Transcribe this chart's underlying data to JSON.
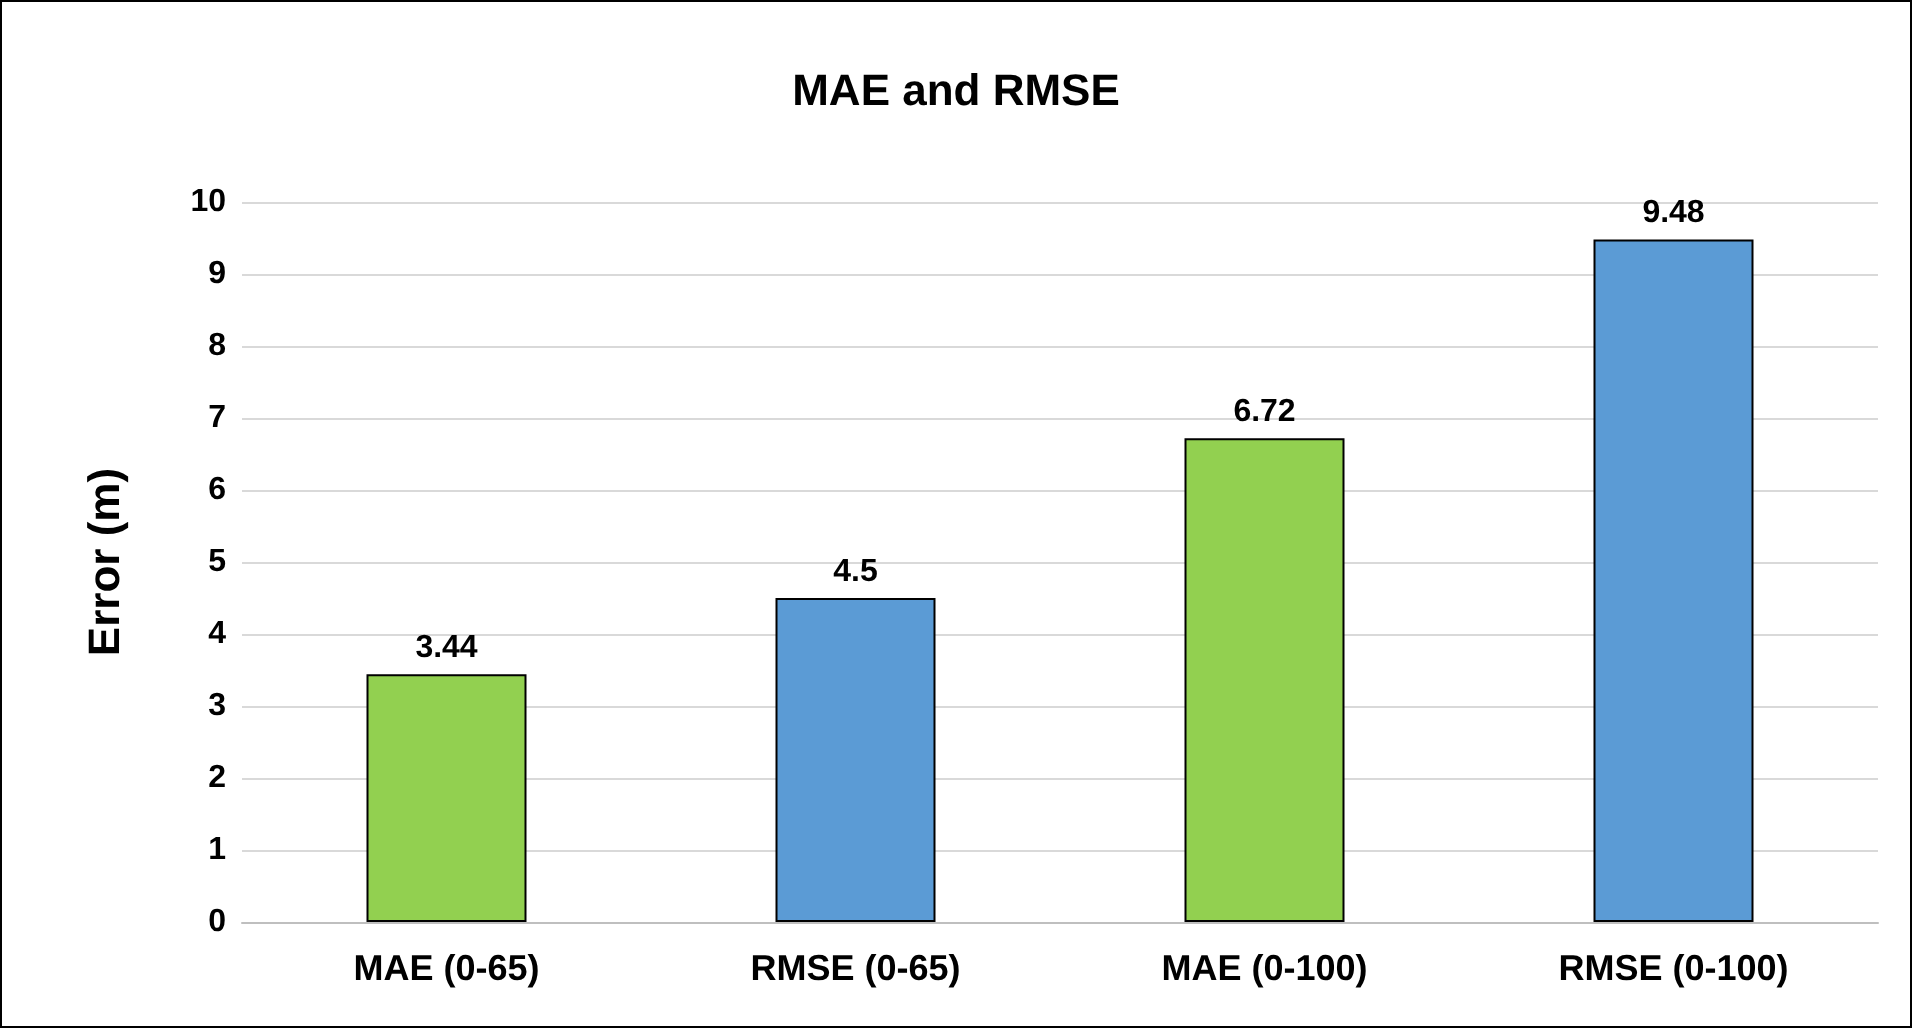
{
  "chart_data": {
    "type": "bar",
    "title": "MAE and RMSE",
    "ylabel": "Error (m)",
    "categories": [
      "MAE (0-65)",
      "RMSE (0-65)",
      "MAE (0-100)",
      "RMSE (0-100)"
    ],
    "values": [
      3.44,
      4.5,
      6.72,
      9.48
    ],
    "colors": [
      "#92d050",
      "#5b9bd5",
      "#92d050",
      "#5b9bd5"
    ],
    "ylim": [
      0,
      10
    ],
    "yticks": [
      0,
      1,
      2,
      3,
      4,
      5,
      6,
      7,
      8,
      9,
      10
    ],
    "grid": "y",
    "data_labels": true
  }
}
